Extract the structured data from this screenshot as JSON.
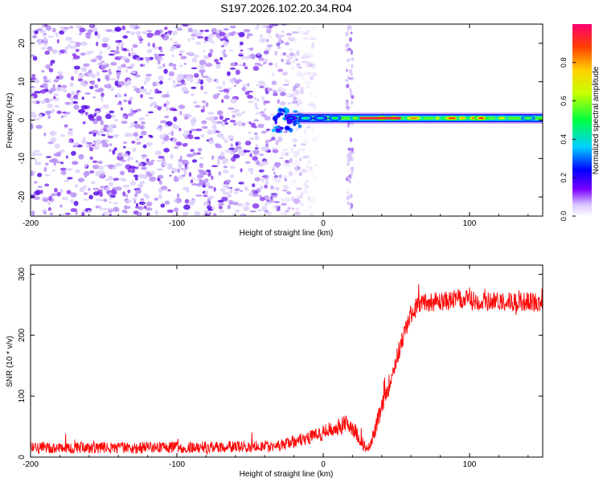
{
  "title": "S197.2026.102.20.34.R04",
  "chart_data": [
    {
      "type": "heatmap",
      "name": "spectrogram",
      "xlabel": "Height of straight line (km)",
      "ylabel": "Frequency (Hz)",
      "xlim": [
        -200,
        150
      ],
      "ylim": [
        -25,
        25
      ],
      "xticks": [
        -200,
        -100,
        0,
        100
      ],
      "yticks": [
        20,
        10,
        0,
        -10,
        -20
      ],
      "colorbar": {
        "label": "Normalized spectral amplitude",
        "range": [
          0,
          1
        ],
        "ticks": [
          0.0,
          0.2,
          0.4,
          0.6,
          0.8
        ]
      },
      "regions": [
        {
          "x": [
            -200,
            -30
          ],
          "description": "broadband noise, amplitude 0.0-0.1 across all frequencies"
        },
        {
          "x": [
            -30,
            150
          ],
          "frequency": 0.5,
          "amplitude_peak": 0.95,
          "description": "narrow band near 0 Hz"
        },
        {
          "x": [
            16,
            20
          ],
          "description": "faint vertical stripe across frequencies"
        }
      ]
    },
    {
      "type": "line",
      "name": "snr",
      "xlabel": "Height of straight line (km)",
      "ylabel": "SNR (10 * v/v)",
      "xlim": [
        -200,
        150
      ],
      "ylim": [
        0,
        315
      ],
      "xticks": [
        -200,
        -100,
        0,
        100
      ],
      "yticks": [
        0,
        100,
        200,
        300
      ],
      "series": [
        {
          "name": "SNR",
          "color": "#ff0000",
          "x": [
            -200,
            -150,
            -100,
            -60,
            -30,
            -20,
            -10,
            0,
            10,
            15,
            20,
            25,
            30,
            35,
            40,
            45,
            50,
            55,
            60,
            65,
            70,
            80,
            90,
            100,
            110,
            120,
            130,
            140,
            150
          ],
          "y": [
            15,
            15,
            16,
            17,
            20,
            25,
            32,
            40,
            50,
            55,
            50,
            30,
            12,
            40,
            80,
            120,
            160,
            200,
            235,
            250,
            255,
            255,
            258,
            258,
            255,
            257,
            255,
            255,
            255
          ]
        }
      ]
    }
  ]
}
